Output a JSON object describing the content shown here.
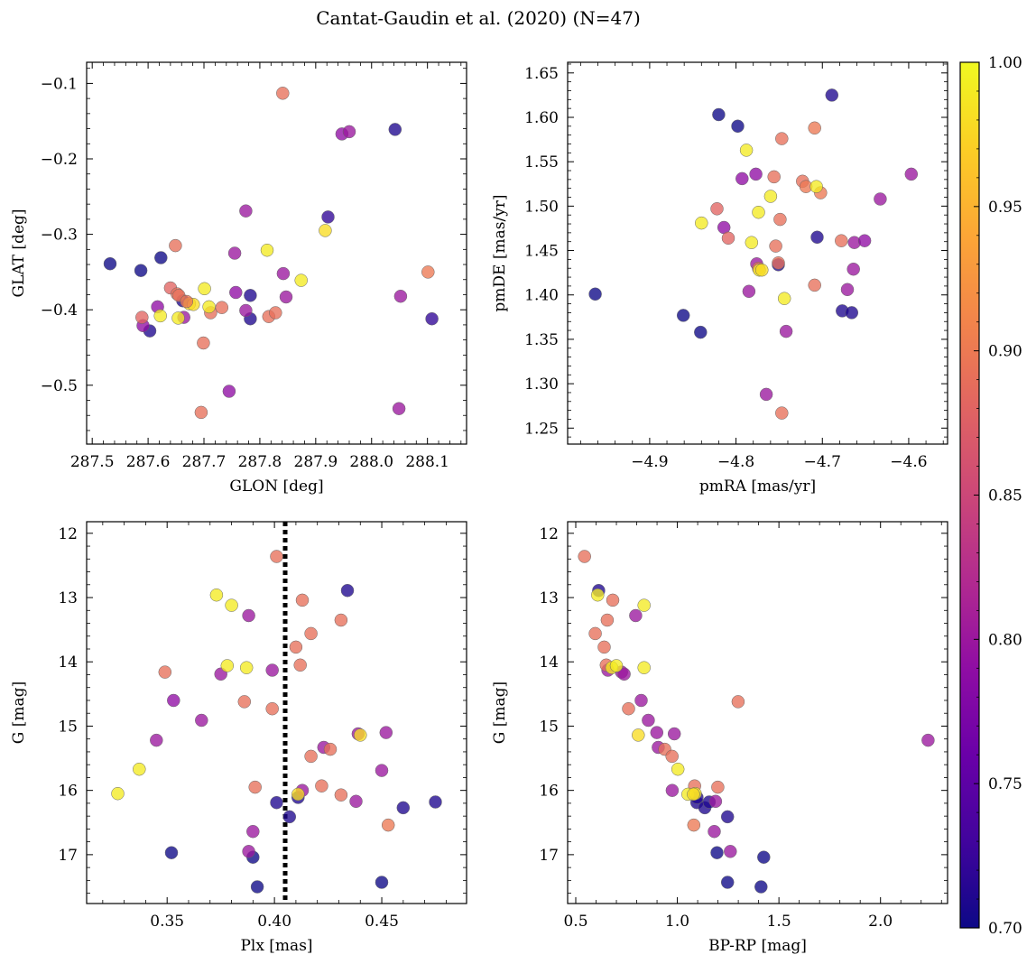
{
  "figure": {
    "title": "Cantat-Gaudin et al. (2020) (N=47)"
  },
  "colorbar": {
    "colormap": "plasma",
    "range": [
      0.7,
      1.0
    ],
    "tick_labels": [
      "0.70",
      "0.75",
      "0.80",
      "0.85",
      "0.90",
      "0.95",
      "1.00"
    ],
    "tick_values": [
      0.7,
      0.75,
      0.8,
      0.85,
      0.9,
      0.95,
      1.0
    ]
  },
  "chart_data": [
    {
      "id": "sky",
      "type": "scatter",
      "title": "",
      "xlabel": "GLON [deg]",
      "ylabel": "GLAT [deg]",
      "xlim": [
        287.49,
        288.17
      ],
      "ylim": [
        -0.578,
        -0.072
      ],
      "yinvert": false,
      "xticks": [
        287.5,
        287.6,
        287.7,
        287.8,
        287.9,
        288.0,
        288.1
      ],
      "xtick_labels": [
        "287.5",
        "287.6",
        "287.7",
        "287.8",
        "287.9",
        "288.0",
        "288.1"
      ],
      "yticks": [
        -0.5,
        -0.4,
        -0.3,
        -0.2,
        -0.1
      ],
      "ytick_labels": [
        "−0.5",
        "−0.4",
        "−0.3",
        "−0.2",
        "−0.1"
      ],
      "points": [
        {
          "x": 287.532,
          "y": -0.339,
          "c": 0.7
        },
        {
          "x": 287.587,
          "y": -0.348,
          "c": 0.7
        },
        {
          "x": 287.603,
          "y": -0.428,
          "c": 0.71
        },
        {
          "x": 287.623,
          "y": -0.331,
          "c": 0.7
        },
        {
          "x": 287.662,
          "y": -0.388,
          "c": 0.71
        },
        {
          "x": 287.783,
          "y": -0.381,
          "c": 0.71
        },
        {
          "x": 287.783,
          "y": -0.412,
          "c": 0.71
        },
        {
          "x": 287.922,
          "y": -0.277,
          "c": 0.72
        },
        {
          "x": 288.042,
          "y": -0.161,
          "c": 0.71
        },
        {
          "x": 288.108,
          "y": -0.412,
          "c": 0.72
        },
        {
          "x": 287.591,
          "y": -0.421,
          "c": 0.79
        },
        {
          "x": 287.617,
          "y": -0.396,
          "c": 0.79
        },
        {
          "x": 287.664,
          "y": -0.41,
          "c": 0.8
        },
        {
          "x": 287.745,
          "y": -0.508,
          "c": 0.79
        },
        {
          "x": 287.755,
          "y": -0.325,
          "c": 0.8
        },
        {
          "x": 287.757,
          "y": -0.377,
          "c": 0.79
        },
        {
          "x": 287.775,
          "y": -0.269,
          "c": 0.8
        },
        {
          "x": 287.775,
          "y": -0.401,
          "c": 0.8
        },
        {
          "x": 287.842,
          "y": -0.352,
          "c": 0.8
        },
        {
          "x": 287.847,
          "y": -0.383,
          "c": 0.8
        },
        {
          "x": 287.947,
          "y": -0.167,
          "c": 0.79
        },
        {
          "x": 287.96,
          "y": -0.164,
          "c": 0.8
        },
        {
          "x": 288.052,
          "y": -0.382,
          "c": 0.8
        },
        {
          "x": 288.049,
          "y": -0.531,
          "c": 0.8
        },
        {
          "x": 287.589,
          "y": -0.41,
          "c": 0.88
        },
        {
          "x": 287.64,
          "y": -0.371,
          "c": 0.88
        },
        {
          "x": 287.649,
          "y": -0.315,
          "c": 0.89
        },
        {
          "x": 287.652,
          "y": -0.379,
          "c": 0.89
        },
        {
          "x": 287.655,
          "y": -0.381,
          "c": 0.89
        },
        {
          "x": 287.695,
          "y": -0.536,
          "c": 0.89
        },
        {
          "x": 287.699,
          "y": -0.444,
          "c": 0.89
        },
        {
          "x": 287.712,
          "y": -0.404,
          "c": 0.89
        },
        {
          "x": 287.732,
          "y": -0.397,
          "c": 0.89
        },
        {
          "x": 287.816,
          "y": -0.409,
          "c": 0.89
        },
        {
          "x": 287.828,
          "y": -0.404,
          "c": 0.89
        },
        {
          "x": 287.841,
          "y": -0.113,
          "c": 0.89
        },
        {
          "x": 288.101,
          "y": -0.35,
          "c": 0.9
        },
        {
          "x": 287.622,
          "y": -0.408,
          "c": 0.99
        },
        {
          "x": 287.654,
          "y": -0.411,
          "c": 0.99
        },
        {
          "x": 287.674,
          "y": -0.392,
          "c": 0.98
        },
        {
          "x": 287.681,
          "y": -0.393,
          "c": 0.98
        },
        {
          "x": 287.701,
          "y": -0.372,
          "c": 0.99
        },
        {
          "x": 287.709,
          "y": -0.396,
          "c": 0.99
        },
        {
          "x": 287.813,
          "y": -0.321,
          "c": 0.99
        },
        {
          "x": 287.874,
          "y": -0.361,
          "c": 0.99
        },
        {
          "x": 287.917,
          "y": -0.295,
          "c": 0.98
        },
        {
          "x": 287.669,
          "y": -0.389,
          "c": 0.9
        }
      ]
    },
    {
      "id": "pm",
      "type": "scatter",
      "title": "",
      "xlabel": "pmRA [mas/yr]",
      "ylabel": "pmDE [mas/yr]",
      "xlim": [
        -4.995,
        -4.555
      ],
      "ylim": [
        1.232,
        1.662
      ],
      "yinvert": false,
      "xticks": [
        -4.9,
        -4.8,
        -4.7,
        -4.6
      ],
      "xtick_labels": [
        "−4.9",
        "−4.8",
        "−4.7",
        "−4.6"
      ],
      "yticks": [
        1.25,
        1.3,
        1.35,
        1.4,
        1.45,
        1.5,
        1.55,
        1.6,
        1.65
      ],
      "ytick_labels": [
        "1.25",
        "1.30",
        "1.35",
        "1.40",
        "1.45",
        "1.50",
        "1.55",
        "1.60",
        "1.65"
      ],
      "points": [
        {
          "x": -4.963,
          "y": 1.401,
          "c": 0.7
        },
        {
          "x": -4.861,
          "y": 1.377,
          "c": 0.7
        },
        {
          "x": -4.841,
          "y": 1.358,
          "c": 0.7
        },
        {
          "x": -4.82,
          "y": 1.603,
          "c": 0.7
        },
        {
          "x": -4.798,
          "y": 1.59,
          "c": 0.7
        },
        {
          "x": -4.751,
          "y": 1.434,
          "c": 0.71
        },
        {
          "x": -4.706,
          "y": 1.465,
          "c": 0.71
        },
        {
          "x": -4.677,
          "y": 1.382,
          "c": 0.71
        },
        {
          "x": -4.666,
          "y": 1.38,
          "c": 0.71
        },
        {
          "x": -4.689,
          "y": 1.625,
          "c": 0.71
        },
        {
          "x": -4.814,
          "y": 1.476,
          "c": 0.79
        },
        {
          "x": -4.793,
          "y": 1.531,
          "c": 0.79
        },
        {
          "x": -4.785,
          "y": 1.404,
          "c": 0.8
        },
        {
          "x": -4.777,
          "y": 1.536,
          "c": 0.79
        },
        {
          "x": -4.776,
          "y": 1.435,
          "c": 0.8
        },
        {
          "x": -4.765,
          "y": 1.288,
          "c": 0.8
        },
        {
          "x": -4.742,
          "y": 1.359,
          "c": 0.8
        },
        {
          "x": -4.671,
          "y": 1.406,
          "c": 0.8
        },
        {
          "x": -4.663,
          "y": 1.459,
          "c": 0.8
        },
        {
          "x": -4.664,
          "y": 1.429,
          "c": 0.8
        },
        {
          "x": -4.651,
          "y": 1.461,
          "c": 0.79
        },
        {
          "x": -4.633,
          "y": 1.508,
          "c": 0.8
        },
        {
          "x": -4.597,
          "y": 1.536,
          "c": 0.8
        },
        {
          "x": -4.822,
          "y": 1.497,
          "c": 0.88
        },
        {
          "x": -4.809,
          "y": 1.464,
          "c": 0.88
        },
        {
          "x": -4.774,
          "y": 1.43,
          "c": 0.89
        },
        {
          "x": -4.756,
          "y": 1.533,
          "c": 0.89
        },
        {
          "x": -4.754,
          "y": 1.455,
          "c": 0.89
        },
        {
          "x": -4.751,
          "y": 1.436,
          "c": 0.89
        },
        {
          "x": -4.749,
          "y": 1.485,
          "c": 0.89
        },
        {
          "x": -4.747,
          "y": 1.576,
          "c": 0.89
        },
        {
          "x": -4.747,
          "y": 1.267,
          "c": 0.89
        },
        {
          "x": -4.723,
          "y": 1.528,
          "c": 0.89
        },
        {
          "x": -4.719,
          "y": 1.522,
          "c": 0.9
        },
        {
          "x": -4.709,
          "y": 1.411,
          "c": 0.89
        },
        {
          "x": -4.709,
          "y": 1.588,
          "c": 0.9
        },
        {
          "x": -4.702,
          "y": 1.515,
          "c": 0.9
        },
        {
          "x": -4.678,
          "y": 1.461,
          "c": 0.89
        },
        {
          "x": -4.84,
          "y": 1.481,
          "c": 0.99
        },
        {
          "x": -4.788,
          "y": 1.563,
          "c": 0.99
        },
        {
          "x": -4.782,
          "y": 1.459,
          "c": 0.99
        },
        {
          "x": -4.774,
          "y": 1.493,
          "c": 0.99
        },
        {
          "x": -4.773,
          "y": 1.428,
          "c": 0.99
        },
        {
          "x": -4.76,
          "y": 1.511,
          "c": 0.99
        },
        {
          "x": -4.744,
          "y": 1.396,
          "c": 0.99
        },
        {
          "x": -4.707,
          "y": 1.522,
          "c": 0.99
        },
        {
          "x": -4.77,
          "y": 1.428,
          "c": 0.98
        }
      ]
    },
    {
      "id": "plx",
      "type": "scatter",
      "title": "",
      "xlabel": "Plx [mas]",
      "ylabel": "G [mag]",
      "xlim": [
        0.3125,
        0.4895
      ],
      "ylim": [
        11.82,
        17.76
      ],
      "yinvert": true,
      "vline": {
        "x": 0.405,
        "style": "dotted"
      },
      "xticks": [
        0.35,
        0.4,
        0.45
      ],
      "xtick_labels": [
        "0.35",
        "0.40",
        "0.45"
      ],
      "yticks": [
        12,
        13,
        14,
        15,
        16,
        17
      ],
      "ytick_labels": [
        "12",
        "13",
        "14",
        "15",
        "16",
        "17"
      ],
      "points": [
        {
          "x": 0.352,
          "y": 16.97,
          "c": 0.7
        },
        {
          "x": 0.39,
          "y": 17.04,
          "c": 0.7
        },
        {
          "x": 0.392,
          "y": 17.5,
          "c": 0.7
        },
        {
          "x": 0.401,
          "y": 16.19,
          "c": 0.71
        },
        {
          "x": 0.407,
          "y": 16.41,
          "c": 0.71
        },
        {
          "x": 0.411,
          "y": 16.11,
          "c": 0.71
        },
        {
          "x": 0.434,
          "y": 12.89,
          "c": 0.71
        },
        {
          "x": 0.45,
          "y": 17.43,
          "c": 0.7
        },
        {
          "x": 0.46,
          "y": 16.27,
          "c": 0.71
        },
        {
          "x": 0.475,
          "y": 16.18,
          "c": 0.71
        },
        {
          "x": 0.345,
          "y": 15.22,
          "c": 0.8
        },
        {
          "x": 0.353,
          "y": 14.6,
          "c": 0.79
        },
        {
          "x": 0.366,
          "y": 14.91,
          "c": 0.8
        },
        {
          "x": 0.375,
          "y": 14.19,
          "c": 0.8
        },
        {
          "x": 0.388,
          "y": 13.28,
          "c": 0.8
        },
        {
          "x": 0.388,
          "y": 16.95,
          "c": 0.8
        },
        {
          "x": 0.39,
          "y": 16.64,
          "c": 0.8
        },
        {
          "x": 0.399,
          "y": 14.13,
          "c": 0.8
        },
        {
          "x": 0.413,
          "y": 16.0,
          "c": 0.8
        },
        {
          "x": 0.423,
          "y": 15.33,
          "c": 0.8
        },
        {
          "x": 0.438,
          "y": 16.17,
          "c": 0.8
        },
        {
          "x": 0.439,
          "y": 15.12,
          "c": 0.8
        },
        {
          "x": 0.45,
          "y": 15.69,
          "c": 0.8
        },
        {
          "x": 0.452,
          "y": 15.1,
          "c": 0.8
        },
        {
          "x": 0.349,
          "y": 14.16,
          "c": 0.89
        },
        {
          "x": 0.386,
          "y": 14.62,
          "c": 0.89
        },
        {
          "x": 0.391,
          "y": 15.95,
          "c": 0.89
        },
        {
          "x": 0.399,
          "y": 14.73,
          "c": 0.89
        },
        {
          "x": 0.401,
          "y": 12.36,
          "c": 0.89
        },
        {
          "x": 0.41,
          "y": 13.77,
          "c": 0.89
        },
        {
          "x": 0.412,
          "y": 14.05,
          "c": 0.89
        },
        {
          "x": 0.413,
          "y": 13.04,
          "c": 0.89
        },
        {
          "x": 0.417,
          "y": 13.56,
          "c": 0.89
        },
        {
          "x": 0.417,
          "y": 15.47,
          "c": 0.89
        },
        {
          "x": 0.422,
          "y": 15.93,
          "c": 0.89
        },
        {
          "x": 0.426,
          "y": 15.36,
          "c": 0.89
        },
        {
          "x": 0.431,
          "y": 13.35,
          "c": 0.89
        },
        {
          "x": 0.431,
          "y": 16.07,
          "c": 0.89
        },
        {
          "x": 0.453,
          "y": 16.54,
          "c": 0.9
        },
        {
          "x": 0.327,
          "y": 16.05,
          "c": 0.99
        },
        {
          "x": 0.337,
          "y": 15.67,
          "c": 0.99
        },
        {
          "x": 0.373,
          "y": 12.96,
          "c": 0.99
        },
        {
          "x": 0.378,
          "y": 14.06,
          "c": 0.99
        },
        {
          "x": 0.38,
          "y": 13.12,
          "c": 0.99
        },
        {
          "x": 0.387,
          "y": 14.09,
          "c": 0.99
        },
        {
          "x": 0.411,
          "y": 16.06,
          "c": 0.98
        },
        {
          "x": 0.44,
          "y": 15.14,
          "c": 0.98
        }
      ]
    },
    {
      "id": "cmd",
      "type": "scatter",
      "title": "",
      "xlabel": "BP-RP [mag]",
      "ylabel": "G [mag]",
      "xlim": [
        0.46,
        2.33
      ],
      "ylim": [
        11.82,
        17.76
      ],
      "yinvert": true,
      "xticks": [
        0.5,
        1.0,
        1.5,
        2.0
      ],
      "xtick_labels": [
        "0.5",
        "1.0",
        "1.5",
        "2.0"
      ],
      "yticks": [
        12,
        13,
        14,
        15,
        16,
        17
      ],
      "ytick_labels": [
        "12",
        "13",
        "14",
        "15",
        "16",
        "17"
      ],
      "points": [
        {
          "x": 0.613,
          "y": 12.89,
          "c": 0.71
        },
        {
          "x": 1.096,
          "y": 16.19,
          "c": 0.71
        },
        {
          "x": 1.135,
          "y": 16.27,
          "c": 0.71
        },
        {
          "x": 1.157,
          "y": 16.18,
          "c": 0.71
        },
        {
          "x": 1.195,
          "y": 16.97,
          "c": 0.7
        },
        {
          "x": 1.247,
          "y": 16.41,
          "c": 0.71
        },
        {
          "x": 1.247,
          "y": 17.43,
          "c": 0.7
        },
        {
          "x": 1.412,
          "y": 17.5,
          "c": 0.7
        },
        {
          "x": 1.425,
          "y": 17.04,
          "c": 0.7
        },
        {
          "x": 1.097,
          "y": 16.11,
          "c": 0.71
        },
        {
          "x": 0.658,
          "y": 14.13,
          "c": 0.8
        },
        {
          "x": 0.725,
          "y": 14.16,
          "c": 0.8
        },
        {
          "x": 0.738,
          "y": 14.19,
          "c": 0.8
        },
        {
          "x": 0.795,
          "y": 13.28,
          "c": 0.8
        },
        {
          "x": 0.822,
          "y": 14.6,
          "c": 0.8
        },
        {
          "x": 0.857,
          "y": 14.91,
          "c": 0.8
        },
        {
          "x": 0.899,
          "y": 15.1,
          "c": 0.8
        },
        {
          "x": 0.906,
          "y": 15.33,
          "c": 0.8
        },
        {
          "x": 0.975,
          "y": 16.0,
          "c": 0.8
        },
        {
          "x": 0.985,
          "y": 15.12,
          "c": 0.8
        },
        {
          "x": 1.182,
          "y": 16.64,
          "c": 0.8
        },
        {
          "x": 1.188,
          "y": 16.17,
          "c": 0.8
        },
        {
          "x": 1.261,
          "y": 16.95,
          "c": 0.8
        },
        {
          "x": 2.234,
          "y": 15.22,
          "c": 0.8
        },
        {
          "x": 0.543,
          "y": 12.36,
          "c": 0.89
        },
        {
          "x": 0.596,
          "y": 13.56,
          "c": 0.89
        },
        {
          "x": 0.64,
          "y": 13.77,
          "c": 0.89
        },
        {
          "x": 0.655,
          "y": 13.35,
          "c": 0.89
        },
        {
          "x": 0.682,
          "y": 13.04,
          "c": 0.89
        },
        {
          "x": 0.65,
          "y": 14.05,
          "c": 0.89
        },
        {
          "x": 0.76,
          "y": 14.73,
          "c": 0.89
        },
        {
          "x": 0.938,
          "y": 15.36,
          "c": 0.89
        },
        {
          "x": 0.974,
          "y": 15.47,
          "c": 0.89
        },
        {
          "x": 1.085,
          "y": 15.93,
          "c": 0.89
        },
        {
          "x": 1.081,
          "y": 16.54,
          "c": 0.9
        },
        {
          "x": 1.199,
          "y": 15.95,
          "c": 0.89
        },
        {
          "x": 1.299,
          "y": 14.62,
          "c": 0.89
        },
        {
          "x": 0.608,
          "y": 12.96,
          "c": 0.99
        },
        {
          "x": 0.677,
          "y": 14.09,
          "c": 0.99
        },
        {
          "x": 0.7,
          "y": 14.06,
          "c": 0.99
        },
        {
          "x": 0.836,
          "y": 13.12,
          "c": 0.99
        },
        {
          "x": 0.836,
          "y": 14.09,
          "c": 0.99
        },
        {
          "x": 0.808,
          "y": 15.14,
          "c": 0.98
        },
        {
          "x": 1.003,
          "y": 15.67,
          "c": 0.99
        },
        {
          "x": 1.052,
          "y": 16.06,
          "c": 0.99
        },
        {
          "x": 1.088,
          "y": 16.05,
          "c": 0.99
        },
        {
          "x": 1.079,
          "y": 16.06,
          "c": 0.98
        }
      ]
    }
  ]
}
